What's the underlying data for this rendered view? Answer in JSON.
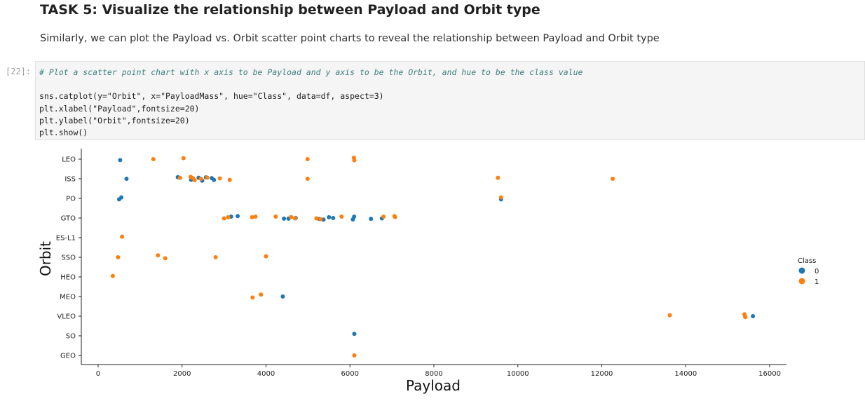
{
  "notebook": {
    "heading": "TASK 5: Visualize the relationship between Payload and Orbit type",
    "paragraph": "Similarly, we can plot the Payload vs. Orbit scatter point charts to reveal the relationship between Payload and Orbit type",
    "prompt": "[22]:",
    "code": {
      "comment": "# Plot a scatter point chart with x axis to be Payload and y axis to be the Orbit, and hue to be the class value",
      "line2": "sns.catplot(y=\"Orbit\", x=\"PayloadMass\", hue=\"Class\", data=df, aspect=3)",
      "line3": "plt.xlabel(\"Payload\",fontsize=20)",
      "line4": "plt.ylabel(\"Orbit\",fontsize=20)",
      "line5": "plt.show()"
    }
  },
  "colors": {
    "class0": "#1f77b4",
    "class1": "#ff7f0e",
    "axis": "#222222"
  },
  "chart_data": {
    "type": "scatter",
    "title": "",
    "xlabel": "Payload",
    "ylabel": "Orbit",
    "xlim": [
      -400,
      16400
    ],
    "x_ticks": [
      "0",
      "2000",
      "4000",
      "6000",
      "8000",
      "10000",
      "12000",
      "14000",
      "16000"
    ],
    "x_tick_values": [
      0,
      2000,
      4000,
      6000,
      8000,
      10000,
      12000,
      14000,
      16000
    ],
    "categories": [
      "LEO",
      "ISS",
      "PO",
      "GTO",
      "ES-L1",
      "SSO",
      "HEO",
      "MEO",
      "VLEO",
      "SO",
      "GEO"
    ],
    "legend": {
      "title": "Class",
      "entries": [
        "0",
        "1"
      ],
      "placement": "right"
    },
    "series": [
      {
        "name": "0",
        "points": [
          {
            "x": 525,
            "y": "LEO",
            "j": 0.05
          },
          {
            "x": 677,
            "y": "ISS",
            "j": 0.0
          },
          {
            "x": 1898,
            "y": "ISS",
            "j": -0.08
          },
          {
            "x": 2216,
            "y": "ISS",
            "j": 0.05
          },
          {
            "x": 2395,
            "y": "ISS",
            "j": -0.05
          },
          {
            "x": 2480,
            "y": "ISS",
            "j": 0.1
          },
          {
            "x": 2570,
            "y": "ISS",
            "j": -0.07
          },
          {
            "x": 2708,
            "y": "ISS",
            "j": -0.03
          },
          {
            "x": 2760,
            "y": "ISS",
            "j": 0.06
          },
          {
            "x": 500,
            "y": "PO",
            "j": 0.05
          },
          {
            "x": 553,
            "y": "PO",
            "j": -0.05
          },
          {
            "x": 9600,
            "y": "PO",
            "j": 0.05
          },
          {
            "x": 3170,
            "y": "GTO",
            "j": -0.07
          },
          {
            "x": 3325,
            "y": "GTO",
            "j": -0.1
          },
          {
            "x": 4428,
            "y": "GTO",
            "j": 0.03
          },
          {
            "x": 4535,
            "y": "GTO",
            "j": 0.03
          },
          {
            "x": 4707,
            "y": "GTO",
            "j": 0.0
          },
          {
            "x": 5271,
            "y": "GTO",
            "j": 0.05
          },
          {
            "x": 5370,
            "y": "GTO",
            "j": 0.08
          },
          {
            "x": 5500,
            "y": "GTO",
            "j": -0.04
          },
          {
            "x": 5600,
            "y": "GTO",
            "j": 0.0
          },
          {
            "x": 6070,
            "y": "GTO",
            "j": 0.07
          },
          {
            "x": 6100,
            "y": "GTO",
            "j": -0.07
          },
          {
            "x": 6500,
            "y": "GTO",
            "j": 0.04
          },
          {
            "x": 6760,
            "y": "GTO",
            "j": 0.02
          },
          {
            "x": 4400,
            "y": "MEO",
            "j": 0.0
          },
          {
            "x": 15600,
            "y": "VLEO",
            "j": 0.0
          },
          {
            "x": 6104,
            "y": "SO",
            "j": -0.1
          }
        ]
      },
      {
        "name": "1",
        "points": [
          {
            "x": 1316,
            "y": "LEO",
            "j": 0.0
          },
          {
            "x": 2034,
            "y": "LEO",
            "j": -0.05
          },
          {
            "x": 4990,
            "y": "LEO",
            "j": 0.0
          },
          {
            "x": 6093,
            "y": "LEO",
            "j": -0.07
          },
          {
            "x": 6104,
            "y": "LEO",
            "j": 0.06
          },
          {
            "x": 1952,
            "y": "ISS",
            "j": -0.05
          },
          {
            "x": 2205,
            "y": "ISS",
            "j": -0.1
          },
          {
            "x": 2257,
            "y": "ISS",
            "j": -0.03
          },
          {
            "x": 2300,
            "y": "ISS",
            "j": 0.07
          },
          {
            "x": 2448,
            "y": "ISS",
            "j": 0.0
          },
          {
            "x": 2600,
            "y": "ISS",
            "j": -0.06
          },
          {
            "x": 2900,
            "y": "ISS",
            "j": -0.02
          },
          {
            "x": 3136,
            "y": "ISS",
            "j": 0.06
          },
          {
            "x": 4990,
            "y": "ISS",
            "j": 0.0
          },
          {
            "x": 9525,
            "y": "ISS",
            "j": -0.05
          },
          {
            "x": 12259,
            "y": "ISS",
            "j": 0.0
          },
          {
            "x": 9600,
            "y": "PO",
            "j": -0.05
          },
          {
            "x": 3000,
            "y": "GTO",
            "j": 0.02
          },
          {
            "x": 3100,
            "y": "GTO",
            "j": -0.04
          },
          {
            "x": 3669,
            "y": "GTO",
            "j": -0.04
          },
          {
            "x": 3750,
            "y": "GTO",
            "j": -0.07
          },
          {
            "x": 4230,
            "y": "GTO",
            "j": -0.07
          },
          {
            "x": 4600,
            "y": "GTO",
            "j": -0.05
          },
          {
            "x": 4690,
            "y": "GTO",
            "j": 0.02
          },
          {
            "x": 5200,
            "y": "GTO",
            "j": 0.02
          },
          {
            "x": 5300,
            "y": "GTO",
            "j": 0.06
          },
          {
            "x": 5800,
            "y": "GTO",
            "j": -0.07
          },
          {
            "x": 6800,
            "y": "GTO",
            "j": -0.07
          },
          {
            "x": 7060,
            "y": "GTO",
            "j": -0.1
          },
          {
            "x": 7076,
            "y": "GTO",
            "j": -0.05
          },
          {
            "x": 570,
            "y": "ES-L1",
            "j": -0.05
          },
          {
            "x": 475,
            "y": "SSO",
            "j": 0.0
          },
          {
            "x": 1425,
            "y": "SSO",
            "j": -0.1
          },
          {
            "x": 1600,
            "y": "SSO",
            "j": 0.05
          },
          {
            "x": 2800,
            "y": "SSO",
            "j": 0.0
          },
          {
            "x": 4000,
            "y": "SSO",
            "j": -0.05
          },
          {
            "x": 350,
            "y": "HEO",
            "j": -0.05
          },
          {
            "x": 3680,
            "y": "MEO",
            "j": 0.05
          },
          {
            "x": 3880,
            "y": "MEO",
            "j": -0.1
          },
          {
            "x": 13620,
            "y": "VLEO",
            "j": -0.05
          },
          {
            "x": 15400,
            "y": "VLEO",
            "j": -0.1
          },
          {
            "x": 15410,
            "y": "VLEO",
            "j": 0.0
          },
          {
            "x": 15420,
            "y": "VLEO",
            "j": 0.05
          },
          {
            "x": 6104,
            "y": "GEO",
            "j": 0.0
          }
        ]
      }
    ]
  }
}
